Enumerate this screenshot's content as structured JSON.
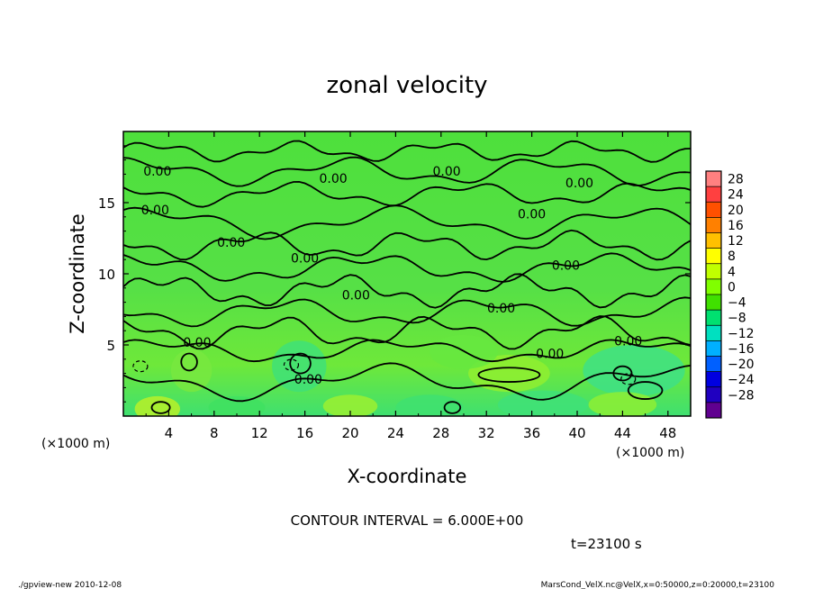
{
  "chart_data": {
    "type": "heatmap",
    "title": "zonal velocity",
    "xlabel": "X-coordinate",
    "ylabel": "Z-coordinate",
    "x_unit": "(×1000 m)",
    "y_unit": "(×1000 m)",
    "xlim": [
      0,
      50
    ],
    "ylim": [
      0,
      20
    ],
    "x_ticks": [
      4,
      8,
      12,
      16,
      20,
      24,
      28,
      32,
      36,
      40,
      44,
      48
    ],
    "y_ticks": [
      5,
      10,
      15
    ],
    "grid": false,
    "colorbar": {
      "placement": "right",
      "levels": [
        28,
        24,
        20,
        16,
        12,
        8,
        4,
        0,
        -4,
        -8,
        -12,
        -16,
        -20,
        -24,
        -28
      ],
      "labels": [
        "28",
        "24",
        "20",
        "16",
        "12",
        "8",
        "4",
        "0",
        "−04",
        "−8",
        "−12",
        "−16",
        "−20",
        "−24",
        "−28"
      ],
      "colors": [
        "#ff8080",
        "#ff4040",
        "#ff5000",
        "#ff8000",
        "#ffc000",
        "#ffff00",
        "#c0ff00",
        "#80ff00",
        "#40e000",
        "#00e070",
        "#00e0c0",
        "#00b0ff",
        "#0060ff",
        "#0000e0",
        "#2000c0",
        "#600090"
      ]
    },
    "contour_labels": [
      {
        "x": 3.0,
        "z": 17.2,
        "text": "0.00"
      },
      {
        "x": 18.5,
        "z": 16.7,
        "text": "0.00"
      },
      {
        "x": 28.5,
        "z": 17.2,
        "text": "0.00"
      },
      {
        "x": 40.2,
        "z": 16.4,
        "text": "0.00"
      },
      {
        "x": 2.8,
        "z": 14.5,
        "text": "0.00"
      },
      {
        "x": 36.0,
        "z": 14.2,
        "text": "0.00"
      },
      {
        "x": 9.5,
        "z": 12.2,
        "text": "0.00"
      },
      {
        "x": 16.0,
        "z": 11.1,
        "text": "0.00"
      },
      {
        "x": 39.0,
        "z": 10.6,
        "text": "0.00"
      },
      {
        "x": 20.5,
        "z": 8.5,
        "text": "0.00"
      },
      {
        "x": 33.3,
        "z": 7.6,
        "text": "0.00"
      },
      {
        "x": 6.5,
        "z": 5.2,
        "text": "0.00"
      },
      {
        "x": 44.5,
        "z": 5.3,
        "text": "0.00"
      },
      {
        "x": 37.6,
        "z": 4.4,
        "text": "0.00"
      },
      {
        "x": 16.3,
        "z": 2.6,
        "text": "0.00"
      }
    ]
  },
  "annotations": {
    "contour_interval": "CONTOUR INTERVAL = 6.000E+00",
    "time": "t=23100 s",
    "footer_left": "./gpview-new   2010-12-08",
    "footer_right": "MarsCond_VelX.nc@VelX,x=0:50000,z=0:20000,t=23100"
  }
}
